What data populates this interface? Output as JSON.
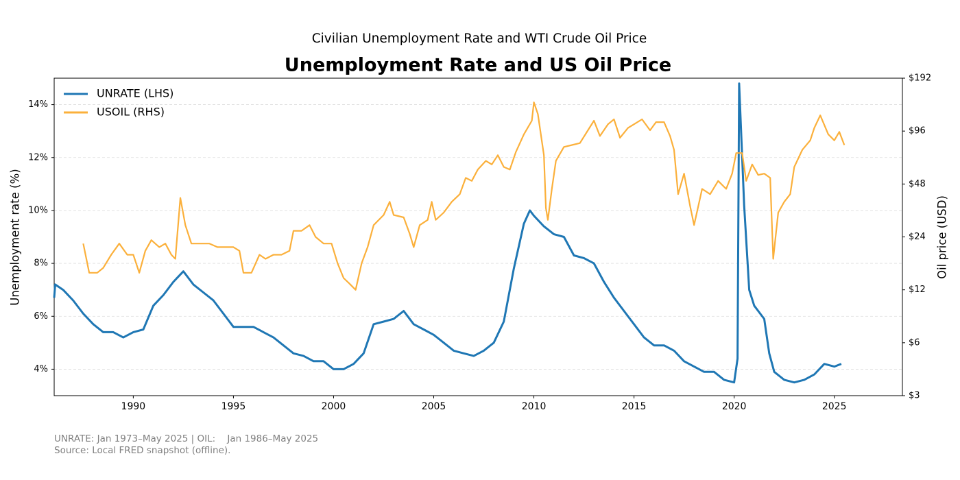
{
  "chart_data": {
    "type": "line",
    "suptitle": "Civilian Unemployment Rate and WTI Crude Oil Price",
    "title": "Unemployment Rate and US Oil Price",
    "ylabel": "Unemployment rate (%)",
    "y2label": "Oil price (USD)",
    "xlim": [
      1986.05,
      2028.4
    ],
    "xticks": [
      1990,
      1995,
      2000,
      2005,
      2010,
      2015,
      2020,
      2025
    ],
    "ylim": [
      3,
      15
    ],
    "yticks": [
      {
        "value": 4,
        "label": "4%"
      },
      {
        "value": 6,
        "label": "6%"
      },
      {
        "value": 8,
        "label": "8%"
      },
      {
        "value": 10,
        "label": "10%"
      },
      {
        "value": 12,
        "label": "12%"
      },
      {
        "value": 14,
        "label": "14%"
      }
    ],
    "y2lim": [
      3,
      192
    ],
    "y2scale": "log",
    "y2ticks": [
      {
        "value": 3,
        "label": "$3"
      },
      {
        "value": 6,
        "label": "$6"
      },
      {
        "value": 12,
        "label": "$12"
      },
      {
        "value": 24,
        "label": "$24"
      },
      {
        "value": 48,
        "label": "$48"
      },
      {
        "value": 96,
        "label": "$96"
      },
      {
        "value": 192,
        "label": "$192"
      }
    ],
    "grid": true,
    "legend": "upper-left",
    "series": [
      {
        "name": "UNRATE (LHS)",
        "color": "#1f77b4",
        "axis": "y",
        "x": [
          1986.05,
          1986.1,
          1986.5,
          1987.0,
          1987.5,
          1988.0,
          1988.5,
          1989.0,
          1989.5,
          1990.0,
          1990.5,
          1991.0,
          1991.5,
          1992.0,
          1992.5,
          1993.0,
          1993.5,
          1994.0,
          1994.5,
          1995.0,
          1995.5,
          1996.0,
          1996.5,
          1997.0,
          1997.5,
          1998.0,
          1998.5,
          1999.0,
          1999.5,
          2000.0,
          2000.5,
          2001.0,
          2001.5,
          2002.0,
          2002.5,
          2003.0,
          2003.5,
          2004.0,
          2004.5,
          2005.0,
          2005.5,
          2006.0,
          2006.5,
          2007.0,
          2007.5,
          2008.0,
          2008.5,
          2009.0,
          2009.5,
          2009.8,
          2010.0,
          2010.5,
          2011.0,
          2011.5,
          2012.0,
          2012.5,
          2013.0,
          2013.5,
          2014.0,
          2014.5,
          2015.0,
          2015.5,
          2016.0,
          2016.5,
          2017.0,
          2017.5,
          2018.0,
          2018.5,
          2019.0,
          2019.5,
          2020.0,
          2020.17,
          2020.25,
          2020.5,
          2020.75,
          2021.0,
          2021.5,
          2021.75,
          2022.0,
          2022.5,
          2023.0,
          2023.5,
          2024.0,
          2024.5,
          2025.0,
          2025.35
        ],
        "values": [
          6.7,
          7.2,
          7.0,
          6.6,
          6.1,
          5.7,
          5.4,
          5.4,
          5.2,
          5.4,
          5.5,
          6.4,
          6.8,
          7.3,
          7.7,
          7.2,
          6.9,
          6.6,
          6.1,
          5.6,
          5.6,
          5.6,
          5.4,
          5.2,
          4.9,
          4.6,
          4.5,
          4.3,
          4.3,
          4.0,
          4.0,
          4.2,
          4.6,
          5.7,
          5.8,
          5.9,
          6.2,
          5.7,
          5.5,
          5.3,
          5.0,
          4.7,
          4.6,
          4.5,
          4.7,
          5.0,
          5.8,
          7.8,
          9.5,
          10.0,
          9.8,
          9.4,
          9.1,
          9.0,
          8.3,
          8.2,
          8.0,
          7.3,
          6.7,
          6.2,
          5.7,
          5.2,
          4.9,
          4.9,
          4.7,
          4.3,
          4.1,
          3.9,
          3.9,
          3.6,
          3.5,
          4.4,
          14.8,
          10.2,
          7.0,
          6.4,
          5.9,
          4.6,
          3.9,
          3.6,
          3.5,
          3.6,
          3.8,
          4.2,
          4.1,
          4.2
        ]
      },
      {
        "name": "USOIL (RHS)",
        "color": "#fbb03b",
        "axis": "y2",
        "x": [
          1987.5,
          1987.8,
          1988.2,
          1988.5,
          1988.9,
          1989.3,
          1989.7,
          1990.0,
          1990.3,
          1990.6,
          1990.9,
          1991.3,
          1991.6,
          1991.9,
          1992.1,
          1992.35,
          1992.6,
          1992.9,
          1993.4,
          1993.8,
          1994.2,
          1994.6,
          1995.0,
          1995.3,
          1995.5,
          1995.9,
          1996.3,
          1996.6,
          1997.0,
          1997.4,
          1997.8,
          1998.0,
          1998.4,
          1998.8,
          1999.1,
          1999.5,
          1999.9,
          2000.2,
          2000.5,
          2000.8,
          2001.1,
          2001.4,
          2001.7,
          2002.0,
          2002.5,
          2002.8,
          2003.0,
          2003.5,
          2003.8,
          2004.0,
          2004.3,
          2004.7,
          2004.9,
          2005.1,
          2005.5,
          2005.9,
          2006.3,
          2006.6,
          2006.9,
          2007.2,
          2007.6,
          2007.9,
          2008.2,
          2008.5,
          2008.8,
          2009.1,
          2009.5,
          2009.9,
          2010.0,
          2010.2,
          2010.5,
          2010.6,
          2010.7,
          2010.9,
          2011.1,
          2011.5,
          2011.9,
          2012.3,
          2012.7,
          2013.0,
          2013.3,
          2013.7,
          2014.0,
          2014.3,
          2014.7,
          2015.0,
          2015.4,
          2015.8,
          2016.1,
          2016.5,
          2016.8,
          2017.0,
          2017.2,
          2017.5,
          2017.8,
          2018.0,
          2018.4,
          2018.8,
          2019.2,
          2019.6,
          2019.9,
          2020.1,
          2020.4,
          2020.6,
          2020.9,
          2021.2,
          2021.5,
          2021.8,
          2021.95,
          2022.2,
          2022.5,
          2022.8,
          2023.0,
          2023.4,
          2023.8,
          2024.0,
          2024.3,
          2024.7,
          2025.0,
          2025.25,
          2025.5
        ],
        "values": [
          22,
          15,
          15,
          16,
          19,
          22,
          19,
          19,
          15,
          20,
          23,
          21,
          22,
          19,
          18,
          40,
          28,
          22,
          22,
          22,
          21,
          21,
          21,
          20,
          15,
          15,
          19,
          18,
          19,
          19,
          20,
          26,
          26,
          28,
          24,
          22,
          22,
          17,
          14,
          13,
          12,
          17,
          21,
          28,
          32,
          38,
          32,
          31,
          25,
          21,
          28,
          30,
          38,
          30,
          33,
          38,
          42,
          52,
          50,
          58,
          65,
          62,
          70,
          60,
          58,
          73,
          92,
          110,
          140,
          120,
          70,
          35,
          30,
          45,
          65,
          78,
          80,
          82,
          97,
          110,
          90,
          105,
          112,
          88,
          100,
          105,
          112,
          97,
          108,
          108,
          90,
          75,
          42,
          55,
          36,
          28,
          45,
          42,
          50,
          45,
          55,
          72,
          72,
          50,
          62,
          54,
          55,
          52,
          18,
          33,
          38,
          42,
          60,
          75,
          85,
          100,
          118,
          92,
          85,
          95,
          80
        ]
      }
    ],
    "notes": [
      "UNRATE: Jan 1973–May 2025 | OIL:    Jan 1986–May 2025",
      "Source: Local FRED snapshot (offline)."
    ]
  }
}
